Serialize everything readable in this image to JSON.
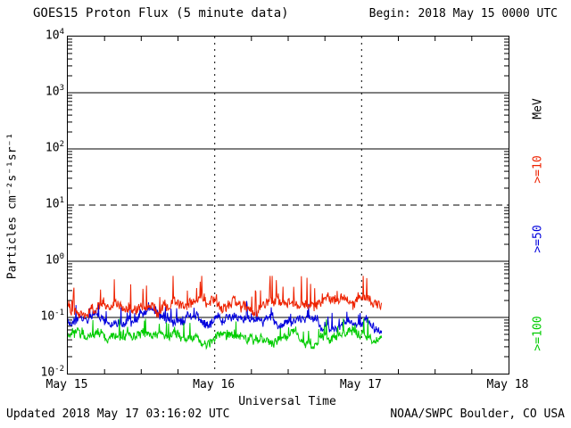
{
  "header": {
    "title": "GOES15 Proton Flux (5 minute data)",
    "begin_label": "Begin: 2018 May 15 0000 UTC"
  },
  "footer": {
    "updated": "Updated 2018 May 17 03:16:02 UTC",
    "source": "NOAA/SWPC Boulder, CO USA"
  },
  "chart_data": {
    "type": "line",
    "title": "GOES15 Proton Flux (5 minute data)",
    "xlabel": "Universal Time",
    "ylabel": "Particles cm⁻²s⁻¹sr⁻¹",
    "begin_time": "2018 May 15 0000 UTC",
    "updated_time": "2018 May 17 03:16:02 UTC",
    "x_ticks": [
      "May 15",
      "May 16",
      "May 17",
      "May 18"
    ],
    "x_range_days": 3,
    "data_end_days": 2.136,
    "points_per_day": 288,
    "ylim": [
      0.01,
      10000
    ],
    "ylim_exp": [
      -2,
      4
    ],
    "y_ticks": [
      {
        "base": "10",
        "exp": "4"
      },
      {
        "base": "10",
        "exp": "3"
      },
      {
        "base": "10",
        "exp": "2"
      },
      {
        "base": "10",
        "exp": "1"
      },
      {
        "base": "10",
        "exp": "0"
      },
      {
        "base": "10",
        "exp": "-1"
      },
      {
        "base": "10",
        "exp": "-2"
      }
    ],
    "grid": {
      "solid_exps": [
        3,
        2,
        0,
        -1
      ],
      "dashed_exps": [
        1
      ],
      "day_lines": [
        1,
        2
      ]
    },
    "right_labels": [
      {
        "id": "mev-unit",
        "text": "MeV",
        "color": "#000000"
      },
      {
        "id": "ge10",
        "text": ">=10",
        "color": "#ee2200"
      },
      {
        "id": "ge50",
        "text": ">=50",
        "color": "#0000dd"
      },
      {
        "id": "ge100",
        "text": ">=100",
        "color": "#00cc00"
      }
    ],
    "series": [
      {
        "id": "ge10",
        "name": ">=10 MeV",
        "color": "#ee2200",
        "seed": 101,
        "base": 0.17,
        "min": 0.095,
        "max": 0.55,
        "jitter": 0.16,
        "spike": 0.5
      },
      {
        "id": "ge50",
        "name": ">=50 MeV",
        "color": "#0000dd",
        "seed": 202,
        "base": 0.09,
        "min": 0.052,
        "max": 0.2,
        "jitter": 0.12,
        "spike": 0.3
      },
      {
        "id": "ge100",
        "name": ">=100 MeV",
        "color": "#00cc00",
        "seed": 303,
        "base": 0.045,
        "min": 0.028,
        "max": 0.095,
        "jitter": 0.12,
        "spike": 0.3
      }
    ]
  }
}
